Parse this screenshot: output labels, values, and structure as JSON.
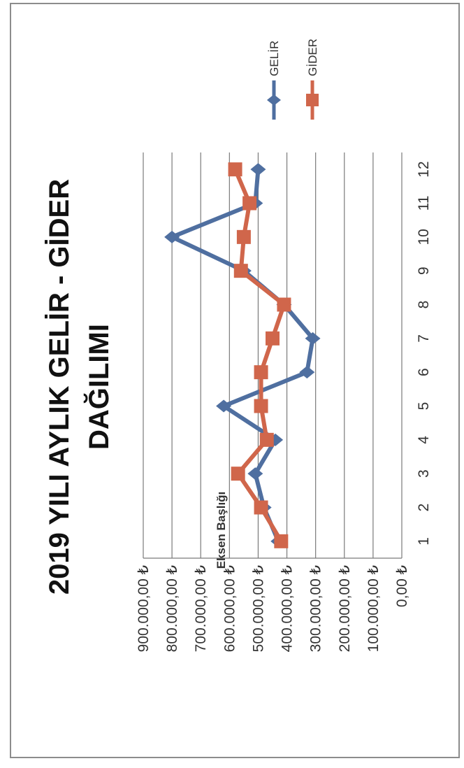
{
  "chart_data": {
    "type": "line",
    "title_line1": "2019 YILI AYLIK GELİR - GİDER",
    "title_line2": "DAĞILIMI",
    "ylabel": "Eksen Başlığı",
    "categories": [
      "1",
      "2",
      "3",
      "4",
      "5",
      "6",
      "7",
      "8",
      "9",
      "10",
      "11",
      "12"
    ],
    "ylim": [
      0,
      900000
    ],
    "ytick_labels": [
      "0,00 ₺",
      "100.000,00 ₺",
      "200.000,00 ₺",
      "300.000,00 ₺",
      "400.000,00 ₺",
      "500.000,00 ₺",
      "600.000,00 ₺",
      "700.000,00 ₺",
      "800.000,00 ₺",
      "900.000,00 ₺"
    ],
    "ytick_values": [
      0,
      100000,
      200000,
      300000,
      400000,
      500000,
      600000,
      700000,
      800000,
      900000
    ],
    "grid": true,
    "legend_placement": "top-right",
    "orientation": "rotated 90° counter-clockwise",
    "series": [
      {
        "name": "GELİR",
        "color": "#4f6fa0",
        "marker": "diamond",
        "values": [
          430000,
          480000,
          510000,
          440000,
          620000,
          330000,
          310000,
          410000,
          550000,
          800000,
          510000,
          500000
        ]
      },
      {
        "name": "GİDER",
        "color": "#d0664b",
        "marker": "square",
        "values": [
          420000,
          490000,
          570000,
          470000,
          490000,
          490000,
          450000,
          410000,
          560000,
          550000,
          530000,
          580000
        ]
      }
    ]
  }
}
